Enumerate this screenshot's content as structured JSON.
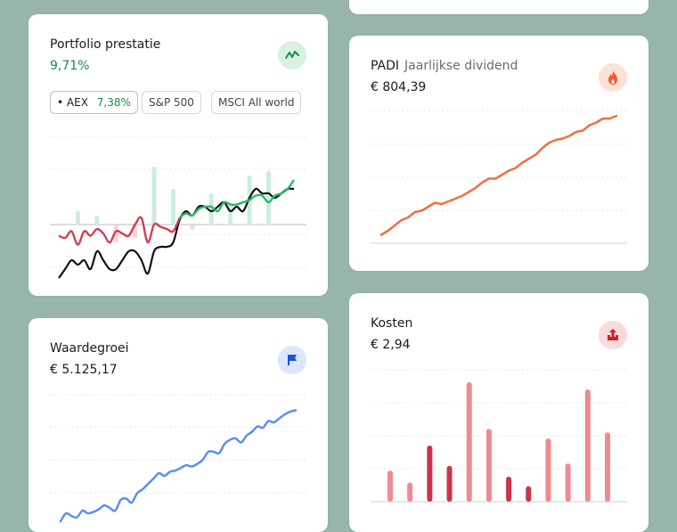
{
  "colors": {
    "background": "#97b5ac",
    "green": "#2bb56a",
    "red": "#d23e55",
    "black": "#111111",
    "orange": "#f2703f",
    "blue": "#5b8ff0",
    "cost_light": "#ee8a92",
    "cost_dark": "#cc3349"
  },
  "portfolio": {
    "title": "Portfolio prestatie",
    "value": "9,71%",
    "icon": "trend-up-icon",
    "chips": [
      {
        "label": "AEX",
        "pct": "7,38%",
        "active": true
      },
      {
        "label": "S&P 500"
      },
      {
        "label": "MSCI All world"
      }
    ]
  },
  "dividend": {
    "title": "PADI",
    "subtitle": "Jaarlijkse dividend",
    "value": "€ 804,39",
    "icon": "flame-icon"
  },
  "waarde": {
    "title": "Waardegroei",
    "value": "€ 5.125,17",
    "icon": "flag-icon"
  },
  "kosten": {
    "title": "Kosten",
    "value": "€ 2,94",
    "icon": "upload-icon"
  },
  "chart_data": [
    {
      "type": "line",
      "name": "portfolio-performance",
      "baseline": 0,
      "ylim": [
        -10,
        20
      ],
      "series": [
        {
          "values": [
            -2.5,
            -3,
            -1.5,
            -4.5,
            -1.5,
            -2.5,
            -1,
            -2,
            -4,
            -1.5,
            -2,
            -2.5,
            0,
            1.5,
            -4,
            0,
            -0.5,
            -1,
            -1.5,
            1.5,
            2.5,
            2,
            3.5,
            4,
            4,
            3,
            5,
            4.5,
            4.5,
            5,
            5.5,
            6.5,
            6.5,
            5,
            6.5,
            7,
            8,
            10
          ]
        },
        {
          "values": [
            -12,
            -10,
            -8,
            -9,
            -8,
            -10,
            -6,
            -8,
            -10,
            -10,
            -8,
            -6,
            -6,
            -8,
            -11,
            -6,
            -5,
            -5,
            -4,
            1,
            3,
            2,
            4,
            4,
            3,
            4,
            5,
            3,
            4,
            3,
            6,
            8,
            7,
            7,
            6,
            7,
            8,
            8
          ]
        }
      ],
      "bars": [
        {
          "x": 3,
          "v": 3
        },
        {
          "x": 6,
          "v": 2
        },
        {
          "x": 9,
          "v": -4
        },
        {
          "x": 12,
          "v": -3
        },
        {
          "x": 15,
          "v": 13
        },
        {
          "x": 18,
          "v": 8
        },
        {
          "x": 21,
          "v": -1
        },
        {
          "x": 24,
          "v": 7
        },
        {
          "x": 27,
          "v": 5
        },
        {
          "x": 30,
          "v": 11
        },
        {
          "x": 33,
          "v": 12
        }
      ]
    },
    {
      "type": "line",
      "name": "annual-dividend",
      "ylim": [
        0,
        100
      ],
      "values": [
        7,
        10,
        14,
        18,
        20,
        24,
        25,
        28,
        31,
        30,
        32,
        34,
        36,
        39,
        42,
        46,
        49,
        49,
        52,
        55,
        57,
        61,
        64,
        67,
        72,
        76,
        78,
        79,
        81,
        84,
        85,
        89,
        91,
        94,
        94,
        96
      ]
    },
    {
      "type": "line",
      "name": "value-growth",
      "ylim": [
        0,
        100
      ],
      "values": [
        4,
        10,
        8,
        7,
        12,
        10,
        11,
        13,
        16,
        14,
        12,
        20,
        21,
        18,
        25,
        28,
        32,
        36,
        40,
        38,
        41,
        42,
        44,
        46,
        45,
        47,
        50,
        56,
        56,
        55,
        62,
        65,
        66,
        63,
        68,
        71,
        75,
        74,
        79,
        78,
        81,
        84,
        86,
        87
      ]
    },
    {
      "type": "bar",
      "name": "costs",
      "ylim": [
        0,
        100
      ],
      "values": [
        26,
        16,
        47,
        30,
        100,
        61,
        21,
        13,
        53,
        32,
        94,
        58
      ],
      "highlight": [
        false,
        false,
        true,
        true,
        false,
        false,
        true,
        true,
        false,
        false,
        false,
        false
      ]
    }
  ]
}
